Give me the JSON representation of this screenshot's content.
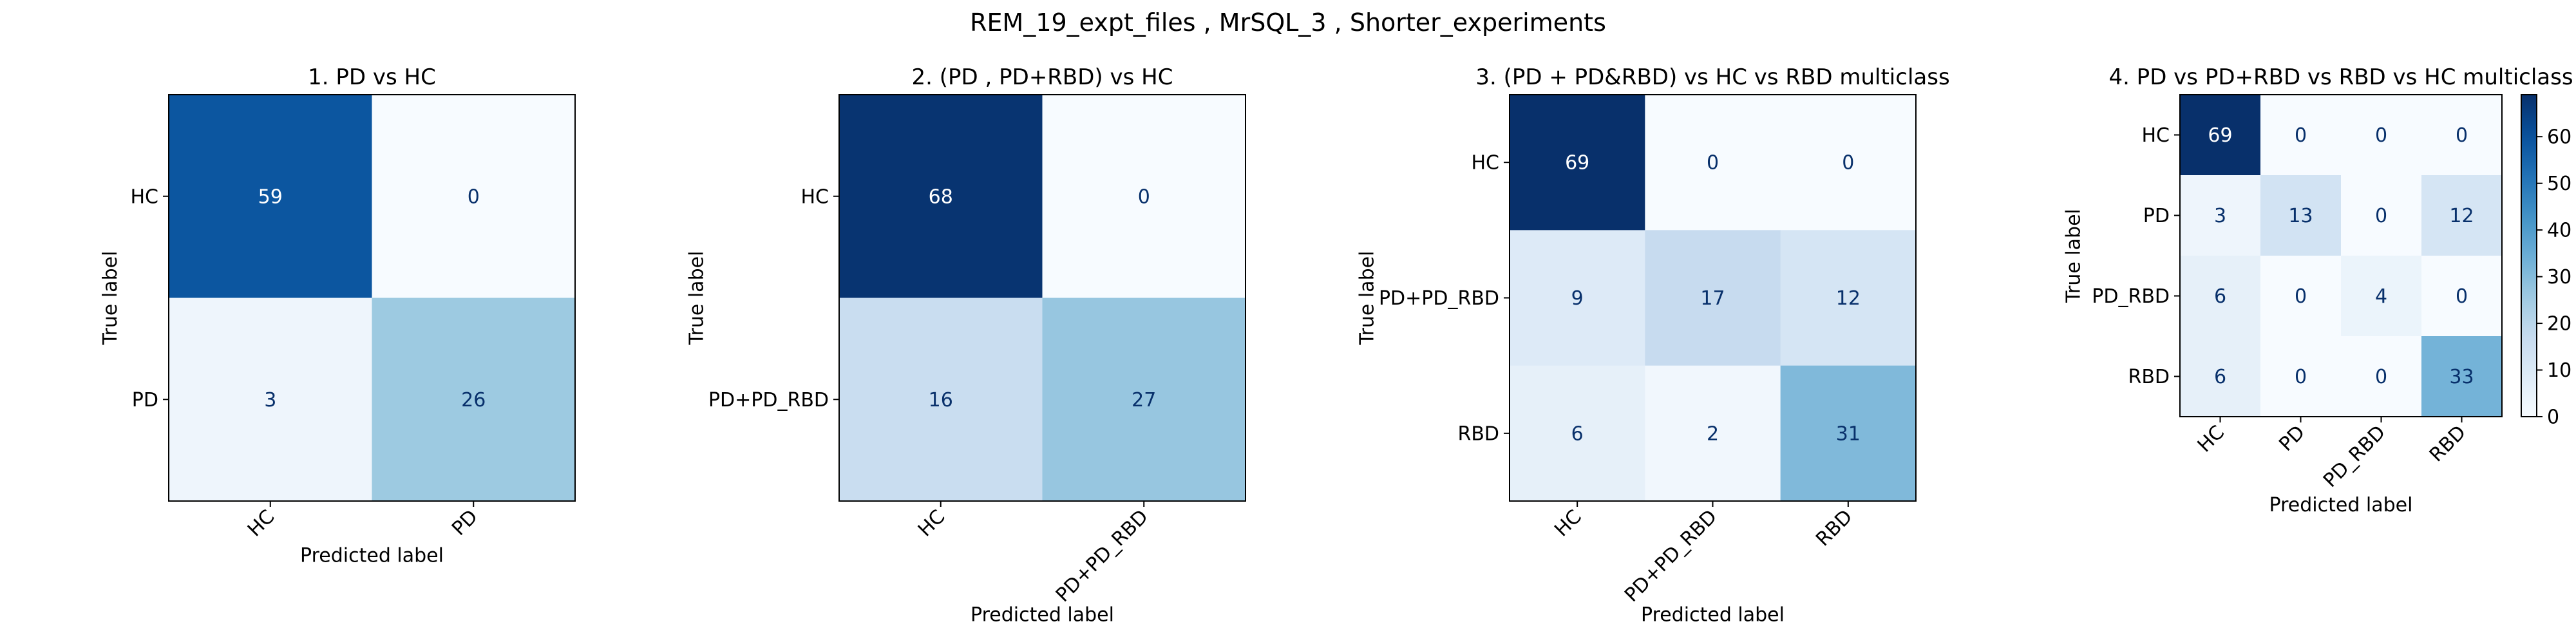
{
  "figure": {
    "suptitle": "REM_19_expt_files , MrSQL_3 , Shorter_experiments"
  },
  "colorbar": {
    "ticks": [
      0,
      10,
      20,
      30,
      40,
      50,
      60
    ],
    "vmin": 0,
    "vmax": 69,
    "colormap": "Blues"
  },
  "chart_data": [
    {
      "type": "heatmap",
      "title": "1. PD vs HC",
      "xlabel": "Predicted label",
      "ylabel": "True label",
      "labels": [
        "HC",
        "PD"
      ],
      "matrix": [
        [
          59,
          0
        ],
        [
          3,
          26
        ]
      ]
    },
    {
      "type": "heatmap",
      "title": "2. (PD , PD+RBD) vs HC",
      "xlabel": "Predicted label",
      "ylabel": "True label",
      "labels": [
        "HC",
        "PD+PD_RBD"
      ],
      "matrix": [
        [
          68,
          0
        ],
        [
          16,
          27
        ]
      ]
    },
    {
      "type": "heatmap",
      "title": "3. (PD + PD&RBD) vs HC vs RBD  multiclass",
      "xlabel": "Predicted label",
      "ylabel": "True label",
      "labels": [
        "HC",
        "PD+PD_RBD",
        "RBD"
      ],
      "matrix": [
        [
          69,
          0,
          0
        ],
        [
          9,
          17,
          12
        ],
        [
          6,
          2,
          31
        ]
      ]
    },
    {
      "type": "heatmap",
      "title": "4. PD vs PD+RBD vs RBD vs HC  multiclass",
      "xlabel": "Predicted label",
      "ylabel": "True label",
      "labels": [
        "HC",
        "PD",
        "PD_RBD",
        "RBD"
      ],
      "matrix": [
        [
          69,
          0,
          0,
          0
        ],
        [
          3,
          13,
          0,
          12
        ],
        [
          6,
          0,
          4,
          0
        ],
        [
          6,
          0,
          0,
          33
        ]
      ]
    }
  ]
}
